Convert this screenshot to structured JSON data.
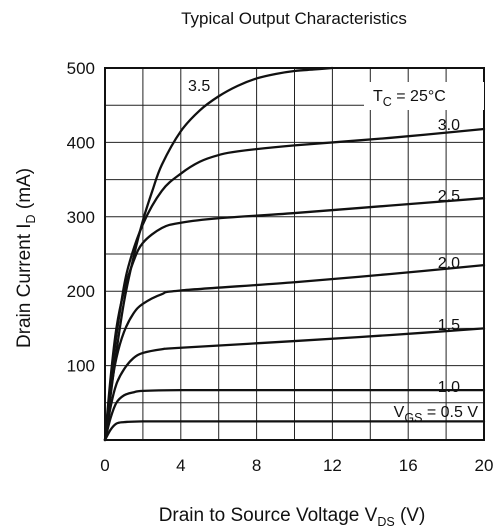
{
  "chart_data": {
    "type": "line",
    "title": "Typical Output Characteristics",
    "xlabel": {
      "main": "Drain to Source Voltage  V",
      "sub": "DS",
      "unit": "  (V)"
    },
    "ylabel": {
      "main": "Drain Current  I",
      "sub": "D",
      "unit": "  (mA)"
    },
    "xlim": [
      0,
      20
    ],
    "ylim": [
      0,
      500
    ],
    "x_ticks": [
      "0",
      "4",
      "8",
      "12",
      "16",
      "20"
    ],
    "y_ticks": [
      "500",
      "400",
      "300",
      "200",
      "100"
    ],
    "grid": true,
    "annotation": {
      "main": "T",
      "sub": "C",
      "rest": " = 25°C"
    },
    "gate_label": {
      "main": "V",
      "sub": "GS",
      "rest": " = "
    },
    "series": [
      {
        "label": "0.5 V",
        "points": [
          [
            0,
            0
          ],
          [
            0.3,
            14
          ],
          [
            0.6,
            22
          ],
          [
            1,
            24
          ],
          [
            2,
            25
          ],
          [
            5,
            25
          ],
          [
            10,
            25
          ],
          [
            15,
            25
          ],
          [
            20,
            25
          ]
        ]
      },
      {
        "label": "1.0",
        "points": [
          [
            0,
            0
          ],
          [
            0.3,
            30
          ],
          [
            0.6,
            50
          ],
          [
            1,
            60
          ],
          [
            1.5,
            64
          ],
          [
            2,
            66
          ],
          [
            4,
            67
          ],
          [
            10,
            67
          ],
          [
            15,
            67
          ],
          [
            20,
            67
          ]
        ]
      },
      {
        "label": "1.5",
        "points": [
          [
            0,
            0
          ],
          [
            0.3,
            45
          ],
          [
            0.6,
            75
          ],
          [
            1,
            95
          ],
          [
            1.5,
            110
          ],
          [
            2,
            117
          ],
          [
            3,
            122
          ],
          [
            4,
            124
          ],
          [
            10,
            133
          ],
          [
            15,
            141
          ],
          [
            20,
            150
          ]
        ]
      },
      {
        "label": "2.0",
        "points": [
          [
            0,
            0
          ],
          [
            0.3,
            65
          ],
          [
            0.6,
            110
          ],
          [
            1,
            145
          ],
          [
            1.5,
            170
          ],
          [
            2,
            183
          ],
          [
            3,
            196
          ],
          [
            4,
            201
          ],
          [
            10,
            212
          ],
          [
            15,
            223
          ],
          [
            20,
            235
          ]
        ]
      },
      {
        "label": "2.5",
        "points": [
          [
            0,
            0
          ],
          [
            0.3,
            85
          ],
          [
            0.6,
            150
          ],
          [
            1,
            200
          ],
          [
            1.5,
            240
          ],
          [
            2,
            265
          ],
          [
            3,
            285
          ],
          [
            4,
            292
          ],
          [
            6,
            298
          ],
          [
            10,
            305
          ],
          [
            15,
            315
          ],
          [
            20,
            325
          ]
        ]
      },
      {
        "label": "3.0",
        "points": [
          [
            0,
            0
          ],
          [
            0.4,
            100
          ],
          [
            0.8,
            175
          ],
          [
            1.2,
            230
          ],
          [
            2,
            290
          ],
          [
            3,
            335
          ],
          [
            4,
            358
          ],
          [
            5,
            374
          ],
          [
            6,
            383
          ],
          [
            7,
            388
          ],
          [
            10,
            396
          ],
          [
            15,
            406
          ],
          [
            20,
            418
          ]
        ]
      },
      {
        "label": "3.5",
        "points": [
          [
            0,
            0
          ],
          [
            0.5,
            100
          ],
          [
            1,
            185
          ],
          [
            1.5,
            245
          ],
          [
            2,
            295
          ],
          [
            2.5,
            335
          ],
          [
            3,
            370
          ],
          [
            4,
            415
          ],
          [
            5,
            443
          ],
          [
            6,
            462
          ],
          [
            7,
            476
          ],
          [
            8,
            486
          ],
          [
            9,
            492
          ],
          [
            10,
            496
          ],
          [
            11,
            498
          ],
          [
            12,
            500
          ]
        ]
      }
    ]
  }
}
